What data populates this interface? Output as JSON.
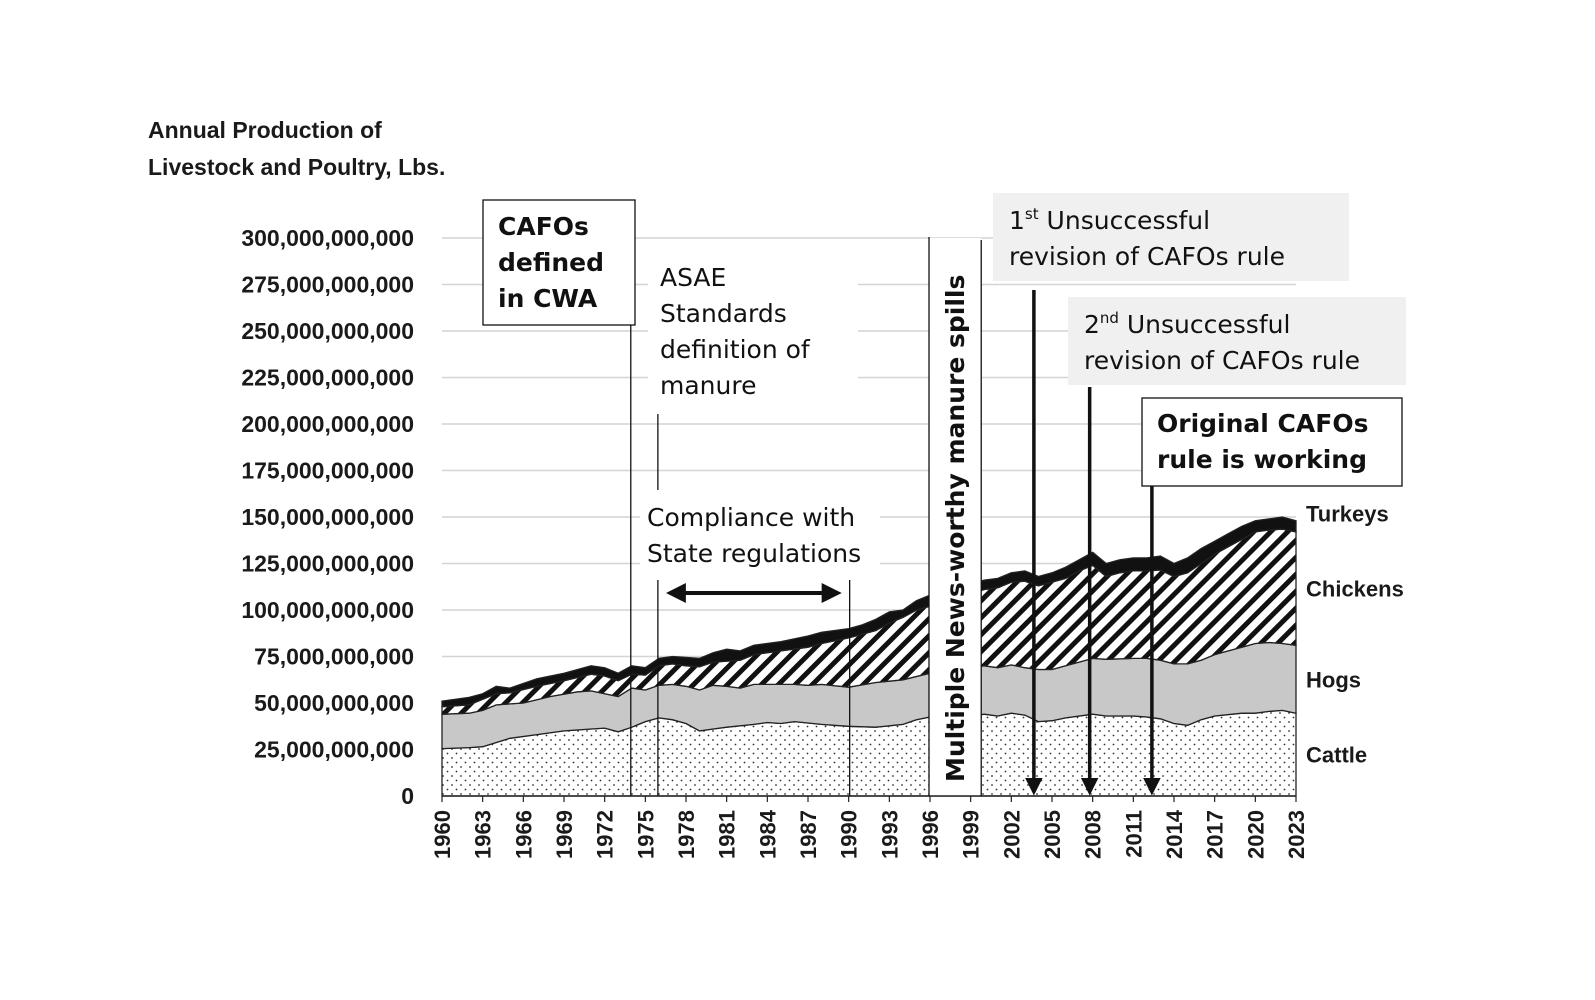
{
  "chart_data": {
    "type": "area",
    "stacked": true,
    "ytitle_lines": [
      "Annual Production of",
      "Livestock and Poultry, Lbs."
    ],
    "ylim": [
      0,
      300000000000
    ],
    "yticks": [
      "0",
      "25,000,000,000",
      "50,000,000,000",
      "75,000,000,000",
      "100,000,000,000",
      "125,000,000,000",
      "150,000,000,000",
      "175,000,000,000",
      "200,000,000,000",
      "225,000,000,000",
      "250,000,000,000",
      "275,000,000,000",
      "300,000,000,000"
    ],
    "xlim": [
      1960,
      2023
    ],
    "xticks": [
      "1960",
      "1963",
      "1966",
      "1969",
      "1972",
      "1975",
      "1978",
      "1981",
      "1984",
      "1987",
      "1990",
      "1993",
      "1996",
      "1999",
      "2002",
      "2005",
      "2008",
      "2011",
      "2014",
      "2017",
      "2020",
      "2023"
    ],
    "grid": "horizontal",
    "series": [
      {
        "name": "Cattle",
        "pattern": "dots",
        "color": "#ffffff",
        "points": [
          [
            1960,
            25.5
          ],
          [
            1962,
            26
          ],
          [
            1963,
            26.5
          ],
          [
            1965,
            31
          ],
          [
            1967,
            33
          ],
          [
            1969,
            35
          ],
          [
            1971,
            36
          ],
          [
            1972,
            36.5
          ],
          [
            1973,
            34.5
          ],
          [
            1974,
            37
          ],
          [
            1975,
            40
          ],
          [
            1976,
            42
          ],
          [
            1977,
            41
          ],
          [
            1978,
            39
          ],
          [
            1979,
            35
          ],
          [
            1980,
            36
          ],
          [
            1981,
            37
          ],
          [
            1983,
            38.5
          ],
          [
            1984,
            39.5
          ],
          [
            1985,
            39
          ],
          [
            1986,
            40
          ],
          [
            1988,
            38.5
          ],
          [
            1990,
            37.5
          ],
          [
            1992,
            37
          ],
          [
            1994,
            38.5
          ],
          [
            1995,
            41
          ],
          [
            1996,
            42.5
          ],
          [
            1999,
            43
          ],
          [
            2000,
            44
          ],
          [
            2001,
            43
          ],
          [
            2002,
            44.5
          ],
          [
            2003,
            43.5
          ],
          [
            2004,
            40
          ],
          [
            2005,
            40.5
          ],
          [
            2006,
            42
          ],
          [
            2008,
            44
          ],
          [
            2009,
            43
          ],
          [
            2011,
            43
          ],
          [
            2012,
            42.5
          ],
          [
            2013,
            41.5
          ],
          [
            2014,
            39
          ],
          [
            2015,
            38
          ],
          [
            2016,
            41
          ],
          [
            2017,
            43
          ],
          [
            2019,
            44.5
          ],
          [
            2020,
            44.5
          ],
          [
            2021,
            45.5
          ],
          [
            2022,
            46
          ],
          [
            2023,
            44.5
          ]
        ]
      },
      {
        "name": "Hogs",
        "pattern": "solid",
        "color": "#c8c8c8",
        "points": [
          [
            1960,
            44
          ],
          [
            1962,
            44.5
          ],
          [
            1963,
            46
          ],
          [
            1964,
            49
          ],
          [
            1965,
            49.5
          ],
          [
            1966,
            50
          ],
          [
            1968,
            53.5
          ],
          [
            1970,
            56
          ],
          [
            1971,
            56.5
          ],
          [
            1972,
            55
          ],
          [
            1973,
            53.5
          ],
          [
            1974,
            58
          ],
          [
            1975,
            57
          ],
          [
            1976,
            59.5
          ],
          [
            1977,
            60
          ],
          [
            1978,
            59
          ],
          [
            1979,
            57
          ],
          [
            1980,
            59.5
          ],
          [
            1981,
            59
          ],
          [
            1982,
            58
          ],
          [
            1983,
            60
          ],
          [
            1984,
            60
          ],
          [
            1986,
            60
          ],
          [
            1987,
            59.5
          ],
          [
            1988,
            60
          ],
          [
            1990,
            58.5
          ],
          [
            1992,
            61
          ],
          [
            1994,
            62.5
          ],
          [
            1996,
            66
          ],
          [
            1998,
            67
          ],
          [
            2000,
            70
          ],
          [
            2001,
            69
          ],
          [
            2002,
            70.5
          ],
          [
            2003,
            69
          ],
          [
            2004,
            68
          ],
          [
            2005,
            68
          ],
          [
            2006,
            70
          ],
          [
            2007,
            72
          ],
          [
            2008,
            74
          ],
          [
            2009,
            73.5
          ],
          [
            2011,
            74
          ],
          [
            2012,
            74
          ],
          [
            2013,
            73
          ],
          [
            2014,
            71
          ],
          [
            2015,
            71
          ],
          [
            2016,
            73
          ],
          [
            2017,
            76
          ],
          [
            2018,
            78
          ],
          [
            2019,
            80
          ],
          [
            2020,
            82
          ],
          [
            2021,
            82.5
          ],
          [
            2022,
            82
          ],
          [
            2023,
            81
          ]
        ]
      },
      {
        "name": "Chickens",
        "pattern": "hatch",
        "color": "#ffffff",
        "points": [
          [
            1960,
            48
          ],
          [
            1962,
            49
          ],
          [
            1963,
            52
          ],
          [
            1964,
            55
          ],
          [
            1965,
            55.5
          ],
          [
            1967,
            59
          ],
          [
            1969,
            62
          ],
          [
            1971,
            65.5
          ],
          [
            1972,
            64.5
          ],
          [
            1973,
            62
          ],
          [
            1974,
            65.5
          ],
          [
            1975,
            65
          ],
          [
            1976,
            70
          ],
          [
            1977,
            71
          ],
          [
            1978,
            70
          ],
          [
            1979,
            69.5
          ],
          [
            1980,
            72
          ],
          [
            1982,
            73
          ],
          [
            1983,
            76
          ],
          [
            1985,
            78
          ],
          [
            1987,
            80
          ],
          [
            1988,
            82
          ],
          [
            1990,
            85
          ],
          [
            1991,
            87
          ],
          [
            1992,
            89
          ],
          [
            1993,
            93
          ],
          [
            1994,
            96
          ],
          [
            1995,
            100
          ],
          [
            1996,
            102
          ],
          [
            1998,
            106
          ],
          [
            2000,
            111
          ],
          [
            2001,
            112
          ],
          [
            2002,
            115
          ],
          [
            2003,
            115.5
          ],
          [
            2004,
            113
          ],
          [
            2005,
            115
          ],
          [
            2006,
            117
          ],
          [
            2007,
            121
          ],
          [
            2008,
            124
          ],
          [
            2009,
            118
          ],
          [
            2010,
            120
          ],
          [
            2011,
            121
          ],
          [
            2012,
            121
          ],
          [
            2013,
            121.5
          ],
          [
            2014,
            118
          ],
          [
            2015,
            120
          ],
          [
            2016,
            125
          ],
          [
            2017,
            130
          ],
          [
            2018,
            134
          ],
          [
            2019,
            138
          ],
          [
            2020,
            142
          ],
          [
            2021,
            143
          ],
          [
            2022,
            143.5
          ],
          [
            2023,
            142
          ]
        ]
      },
      {
        "name": "Turkeys",
        "pattern": "solid",
        "color": "#111111",
        "points": [
          [
            1960,
            51
          ],
          [
            1962,
            53
          ],
          [
            1963,
            55
          ],
          [
            1964,
            59
          ],
          [
            1965,
            58
          ],
          [
            1967,
            63
          ],
          [
            1969,
            66
          ],
          [
            1971,
            70
          ],
          [
            1972,
            69
          ],
          [
            1973,
            66
          ],
          [
            1974,
            70
          ],
          [
            1975,
            69
          ],
          [
            1976,
            74
          ],
          [
            1977,
            75
          ],
          [
            1978,
            74.5
          ],
          [
            1979,
            74
          ],
          [
            1980,
            77
          ],
          [
            1981,
            79
          ],
          [
            1982,
            78
          ],
          [
            1983,
            81
          ],
          [
            1985,
            83
          ],
          [
            1987,
            86
          ],
          [
            1988,
            88
          ],
          [
            1990,
            90
          ],
          [
            1991,
            92
          ],
          [
            1992,
            95
          ],
          [
            1993,
            99
          ],
          [
            1994,
            100
          ],
          [
            1995,
            105
          ],
          [
            1996,
            108
          ],
          [
            1998,
            112
          ],
          [
            2000,
            116
          ],
          [
            2001,
            117
          ],
          [
            2002,
            120
          ],
          [
            2003,
            121
          ],
          [
            2004,
            118
          ],
          [
            2005,
            120
          ],
          [
            2006,
            123
          ],
          [
            2007,
            127
          ],
          [
            2008,
            131
          ],
          [
            2009,
            125
          ],
          [
            2010,
            127
          ],
          [
            2011,
            128
          ],
          [
            2012,
            128
          ],
          [
            2013,
            129
          ],
          [
            2014,
            125
          ],
          [
            2015,
            128
          ],
          [
            2016,
            133
          ],
          [
            2017,
            137
          ],
          [
            2018,
            141
          ],
          [
            2019,
            145
          ],
          [
            2020,
            148
          ],
          [
            2021,
            149
          ],
          [
            2022,
            150
          ],
          [
            2023,
            148
          ]
        ]
      }
    ],
    "annotations": {
      "cafos_defined": {
        "lines": [
          "CAFOs",
          "defined",
          "in CWA"
        ],
        "year": 1974
      },
      "asae": {
        "lines": [
          "ASAE",
          "Standards",
          "definition of",
          "manure"
        ],
        "year": 1976
      },
      "compliance": {
        "lines": [
          "Compliance with",
          "State regulations"
        ],
        "from": 1976,
        "to": 1990
      },
      "manure_spills": {
        "text": "Multiple News-worthy manure spills",
        "from": 1996,
        "to": 2000
      },
      "revision1": {
        "prefix": "1",
        "sup": "st",
        "line1": " Unsuccessful",
        "line2": "revision of CAFOs rule",
        "year": 2003
      },
      "revision2": {
        "prefix": "2",
        "sup": "nd",
        "line1": " Unsuccessful",
        "line2": "revision of CAFOs rule",
        "year": 2008
      },
      "original": {
        "lines": [
          "Original CAFOs",
          "rule is working"
        ],
        "year": 2012
      }
    }
  }
}
